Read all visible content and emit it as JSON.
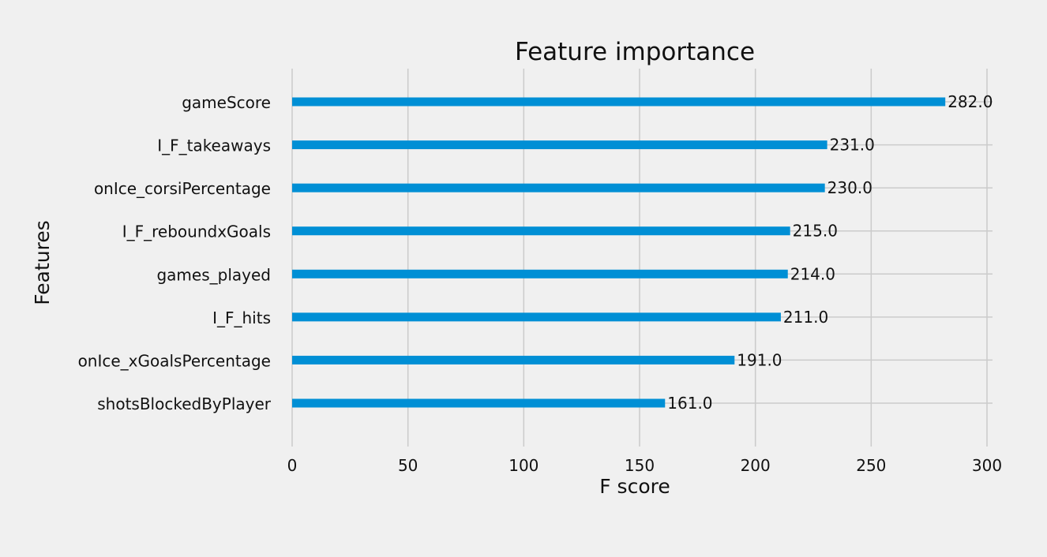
{
  "chart_data": {
    "type": "bar",
    "orientation": "horizontal",
    "title": "Feature importance",
    "xlabel": "F score",
    "ylabel": "Features",
    "xlim": [
      0,
      300
    ],
    "xticks": [
      0,
      50,
      100,
      150,
      200,
      250,
      300
    ],
    "grid": true,
    "categories": [
      "gameScore",
      "I_F_takeaways",
      "onIce_corsiPercentage",
      "I_F_reboundxGoals",
      "games_played",
      "I_F_hits",
      "onIce_xGoalsPercentage",
      "shotsBlockedByPlayer"
    ],
    "values": [
      282.0,
      231.0,
      230.0,
      215.0,
      214.0,
      211.0,
      191.0,
      161.0
    ],
    "value_labels": [
      "282.0",
      "231.0",
      "230.0",
      "215.0",
      "214.0",
      "211.0",
      "191.0",
      "161.0"
    ],
    "bar_color": "#008fd5",
    "background_color": "#f0f0f0"
  }
}
